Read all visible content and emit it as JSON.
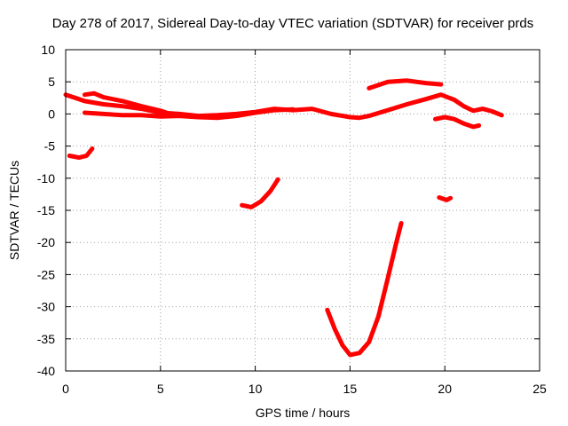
{
  "chart_data": {
    "type": "scatter",
    "title": "Day 278 of 2017, Sidereal Day-to-day VTEC variation (SDTVAR) for receiver prds",
    "xlabel": "GPS time / hours",
    "ylabel": "SDTVAR / TECUs",
    "xlim": [
      0,
      25
    ],
    "ylim": [
      -40,
      10
    ],
    "xticks": [
      0,
      5,
      10,
      15,
      20,
      25
    ],
    "yticks": [
      -40,
      -35,
      -30,
      -25,
      -20,
      -15,
      -10,
      -5,
      0,
      5,
      10
    ],
    "grid": true,
    "marker_color": "#ff0000",
    "series": [
      {
        "name": "track-1",
        "points": [
          [
            0.0,
            3.0
          ],
          [
            0.5,
            2.5
          ],
          [
            1.0,
            2.0
          ],
          [
            2.0,
            1.5
          ],
          [
            3.0,
            1.2
          ],
          [
            4.0,
            0.8
          ],
          [
            5.0,
            0.2
          ],
          [
            6.0,
            0.0
          ],
          [
            7.0,
            -0.3
          ],
          [
            8.0,
            -0.2
          ],
          [
            9.0,
            0.0
          ],
          [
            10.0,
            0.3
          ],
          [
            11.0,
            0.8
          ],
          [
            12.0,
            0.6
          ],
          [
            13.0,
            0.8
          ],
          [
            14.0,
            0.0
          ],
          [
            15.0,
            -0.5
          ],
          [
            15.5,
            -0.6
          ],
          [
            16.0,
            -0.3
          ],
          [
            17.0,
            0.6
          ],
          [
            18.0,
            1.5
          ],
          [
            19.0,
            2.3
          ],
          [
            19.8,
            3.0
          ],
          [
            20.5,
            2.2
          ],
          [
            21.0,
            1.2
          ],
          [
            21.5,
            0.5
          ],
          [
            22.0,
            0.8
          ],
          [
            22.5,
            0.4
          ],
          [
            23.0,
            -0.2
          ]
        ]
      },
      {
        "name": "track-2",
        "points": [
          [
            1.0,
            3.0
          ],
          [
            1.5,
            3.2
          ],
          [
            2.0,
            2.6
          ],
          [
            3.0,
            2.0
          ],
          [
            4.0,
            1.2
          ],
          [
            5.0,
            0.5
          ],
          [
            5.5,
            0.0
          ]
        ]
      },
      {
        "name": "track-3",
        "points": [
          [
            1.0,
            0.2
          ],
          [
            2.0,
            0.0
          ],
          [
            3.0,
            -0.2
          ],
          [
            4.0,
            -0.2
          ],
          [
            5.0,
            -0.4
          ],
          [
            6.0,
            -0.3
          ],
          [
            7.0,
            -0.5
          ],
          [
            8.0,
            -0.6
          ],
          [
            9.0,
            -0.3
          ],
          [
            10.0,
            0.2
          ],
          [
            11.0,
            0.6
          ],
          [
            12.0,
            0.7
          ]
        ]
      },
      {
        "name": "track-4",
        "points": [
          [
            16.0,
            4.0
          ],
          [
            17.0,
            5.0
          ],
          [
            18.0,
            5.2
          ],
          [
            19.0,
            4.8
          ],
          [
            19.8,
            4.6
          ]
        ]
      },
      {
        "name": "track-5",
        "points": [
          [
            19.5,
            -0.8
          ],
          [
            20.0,
            -0.5
          ],
          [
            20.5,
            -0.8
          ],
          [
            21.0,
            -1.5
          ],
          [
            21.5,
            -2.0
          ],
          [
            21.8,
            -1.8
          ]
        ]
      },
      {
        "name": "track-6",
        "points": [
          [
            0.2,
            -6.5
          ],
          [
            0.7,
            -6.8
          ],
          [
            1.1,
            -6.5
          ],
          [
            1.4,
            -5.4
          ]
        ]
      },
      {
        "name": "track-7",
        "points": [
          [
            9.3,
            -14.2
          ],
          [
            9.8,
            -14.5
          ],
          [
            10.3,
            -13.6
          ],
          [
            10.8,
            -12.0
          ],
          [
            11.2,
            -10.2
          ]
        ]
      },
      {
        "name": "track-8",
        "points": [
          [
            19.7,
            -13.0
          ],
          [
            20.1,
            -13.4
          ],
          [
            20.3,
            -13.1
          ]
        ]
      },
      {
        "name": "track-9",
        "points": [
          [
            13.8,
            -30.5
          ],
          [
            14.2,
            -33.5
          ],
          [
            14.6,
            -36.0
          ],
          [
            15.0,
            -37.5
          ],
          [
            15.5,
            -37.2
          ],
          [
            16.0,
            -35.5
          ],
          [
            16.5,
            -31.5
          ],
          [
            17.0,
            -25.5
          ],
          [
            17.4,
            -20.5
          ],
          [
            17.7,
            -17.0
          ]
        ]
      }
    ]
  }
}
